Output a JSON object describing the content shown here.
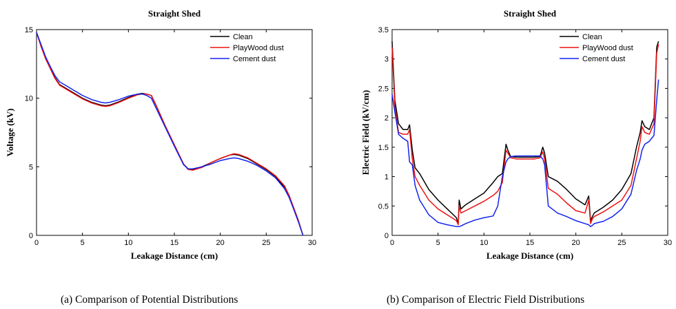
{
  "figure": {
    "caption_a": "(a)   Comparison of Potential Distributions",
    "caption_b": "(b)   Comparison of Electric Field Distributions"
  },
  "chart_data": [
    {
      "type": "line",
      "title": "Straight Shed",
      "xlabel": "Leakage Distance  (cm)",
      "ylabel": "Voltage  (kV)",
      "xlim": [
        0,
        30
      ],
      "ylim": [
        0,
        15
      ],
      "xticks": [
        0,
        5,
        10,
        15,
        20,
        25,
        30
      ],
      "yticks": [
        0,
        5,
        10,
        15
      ],
      "legend_position": "top-right",
      "series": [
        {
          "name": "Clean",
          "color": "#000000",
          "x": [
            0,
            0.5,
            1,
            1.5,
            2,
            2.5,
            3,
            4,
            5,
            6,
            7,
            7.5,
            8,
            9,
            10,
            11,
            11.5,
            12,
            12.5,
            13,
            14,
            15,
            16,
            16.5,
            17,
            18,
            19,
            20,
            21,
            21.5,
            22,
            23,
            24,
            25,
            26,
            27,
            27.5,
            28,
            28.5,
            29
          ],
          "y": [
            14.8,
            13.8,
            12.9,
            12.2,
            11.5,
            11.0,
            10.8,
            10.4,
            10.0,
            9.7,
            9.5,
            9.45,
            9.5,
            9.75,
            10.05,
            10.3,
            10.35,
            10.3,
            10.2,
            9.5,
            8.0,
            6.6,
            5.2,
            4.85,
            4.8,
            5.0,
            5.3,
            5.6,
            5.85,
            5.9,
            5.85,
            5.6,
            5.2,
            4.8,
            4.3,
            3.5,
            2.8,
            1.9,
            1.0,
            0.0
          ]
        },
        {
          "name": "PlayWood dust",
          "color": "#ee1111",
          "x": [
            0,
            0.5,
            1,
            1.5,
            2,
            2.5,
            3,
            4,
            5,
            6,
            7,
            7.5,
            8,
            9,
            10,
            11,
            11.5,
            12,
            12.5,
            13,
            14,
            15,
            16,
            16.5,
            17,
            18,
            19,
            20,
            21,
            21.5,
            22,
            23,
            24,
            25,
            26,
            27,
            27.5,
            28,
            28.5,
            29
          ],
          "y": [
            14.8,
            13.75,
            12.85,
            12.15,
            11.45,
            10.95,
            10.75,
            10.35,
            9.95,
            9.65,
            9.45,
            9.4,
            9.45,
            9.7,
            10.0,
            10.25,
            10.3,
            10.3,
            10.2,
            9.5,
            8.0,
            6.6,
            5.2,
            4.8,
            4.75,
            4.95,
            5.3,
            5.6,
            5.85,
            5.95,
            5.9,
            5.65,
            5.25,
            4.85,
            4.35,
            3.6,
            2.9,
            2.0,
            1.1,
            0.0
          ]
        },
        {
          "name": "Cement dust",
          "color": "#1122ee",
          "x": [
            0,
            0.5,
            1,
            1.5,
            2,
            2.5,
            3,
            4,
            5,
            6,
            7,
            7.5,
            8,
            9,
            10,
            11,
            11.5,
            12,
            12.5,
            13,
            14,
            15,
            16,
            16.5,
            17,
            18,
            19,
            20,
            21,
            21.5,
            22,
            23,
            24,
            25,
            26,
            27,
            27.5,
            28,
            28.5,
            29
          ],
          "y": [
            14.8,
            13.9,
            13.0,
            12.3,
            11.65,
            11.2,
            11.0,
            10.6,
            10.2,
            9.9,
            9.7,
            9.65,
            9.7,
            9.9,
            10.15,
            10.3,
            10.3,
            10.2,
            10.0,
            9.3,
            7.9,
            6.5,
            5.15,
            4.85,
            4.85,
            5.0,
            5.2,
            5.45,
            5.6,
            5.65,
            5.6,
            5.4,
            5.1,
            4.7,
            4.2,
            3.4,
            2.75,
            1.9,
            1.0,
            0.0
          ]
        }
      ]
    },
    {
      "type": "line",
      "title": "Straight Shed",
      "xlabel": "Leakage Distance  (cm)",
      "ylabel": "Electric Field  (kV/cm)",
      "xlim": [
        0,
        30
      ],
      "ylim": [
        0,
        3.5
      ],
      "xticks": [
        0,
        5,
        10,
        15,
        20,
        25,
        30
      ],
      "yticks": [
        0,
        0.5,
        1,
        1.5,
        2,
        2.5,
        3,
        3.5
      ],
      "legend_position": "top-right",
      "series": [
        {
          "name": "Clean",
          "color": "#000000",
          "x": [
            0,
            0.3,
            0.7,
            1.2,
            1.7,
            1.9,
            2.2,
            2.5,
            3,
            4,
            5,
            6,
            7,
            7.2,
            7.3,
            7.5,
            8,
            9,
            10,
            11,
            11.5,
            12,
            12.4,
            12.6,
            12.9,
            13.5,
            14.5,
            15.5,
            16.1,
            16.4,
            16.6,
            17,
            18,
            19,
            20,
            21,
            21.4,
            21.6,
            21.8,
            22,
            23,
            24,
            25,
            26,
            26.6,
            27,
            27.2,
            27.5,
            28,
            28.5,
            28.8,
            29
          ],
          "y": [
            3.3,
            2.3,
            1.9,
            1.8,
            1.8,
            1.88,
            1.45,
            1.15,
            1.05,
            0.78,
            0.6,
            0.45,
            0.3,
            0.2,
            0.6,
            0.45,
            0.52,
            0.62,
            0.72,
            0.9,
            1.0,
            1.05,
            1.55,
            1.45,
            1.34,
            1.33,
            1.33,
            1.33,
            1.34,
            1.5,
            1.4,
            1.0,
            0.92,
            0.78,
            0.62,
            0.52,
            0.67,
            0.25,
            0.32,
            0.38,
            0.48,
            0.6,
            0.78,
            1.05,
            1.5,
            1.75,
            1.95,
            1.85,
            1.8,
            2.0,
            3.2,
            3.3
          ]
        },
        {
          "name": "PlayWood dust",
          "color": "#ee1111",
          "x": [
            0,
            0.3,
            0.7,
            1.2,
            1.7,
            1.9,
            2.2,
            2.5,
            3,
            4,
            5,
            6,
            7,
            7.2,
            7.3,
            7.5,
            8,
            9,
            10,
            11,
            11.5,
            12,
            12.4,
            12.6,
            12.9,
            13.5,
            14.5,
            15.5,
            16.1,
            16.4,
            16.6,
            17,
            18,
            19,
            20,
            21,
            21.4,
            21.6,
            21.8,
            22,
            23,
            24,
            25,
            26,
            26.6,
            27,
            27.2,
            27.5,
            28,
            28.5,
            28.8,
            29
          ],
          "y": [
            3.2,
            2.2,
            1.75,
            1.72,
            1.72,
            1.8,
            1.3,
            1.0,
            0.85,
            0.6,
            0.45,
            0.35,
            0.25,
            0.18,
            0.5,
            0.38,
            0.42,
            0.5,
            0.58,
            0.68,
            0.75,
            0.9,
            1.45,
            1.4,
            1.32,
            1.3,
            1.3,
            1.3,
            1.32,
            1.42,
            1.3,
            0.8,
            0.7,
            0.55,
            0.42,
            0.38,
            0.6,
            0.2,
            0.28,
            0.32,
            0.4,
            0.5,
            0.6,
            0.85,
            1.3,
            1.6,
            1.85,
            1.75,
            1.72,
            1.9,
            3.1,
            3.25
          ]
        },
        {
          "name": "Cement dust",
          "color": "#1122ee",
          "x": [
            0,
            0.3,
            0.7,
            1.2,
            1.7,
            1.9,
            2.2,
            2.5,
            3,
            4,
            5,
            6,
            7,
            7.2,
            7.3,
            7.5,
            8,
            9,
            10,
            11,
            11.5,
            12,
            12.4,
            12.6,
            12.9,
            13.5,
            14.5,
            15.5,
            16.1,
            16.4,
            16.6,
            17,
            18,
            19,
            20,
            21,
            21.4,
            21.6,
            21.8,
            22,
            23,
            24,
            25,
            26,
            26.6,
            27,
            27.2,
            27.5,
            28,
            28.5,
            28.8,
            29
          ],
          "y": [
            2.4,
            2.1,
            1.72,
            1.65,
            1.6,
            1.25,
            1.2,
            0.85,
            0.6,
            0.35,
            0.22,
            0.18,
            0.15,
            0.15,
            0.15,
            0.16,
            0.2,
            0.26,
            0.3,
            0.33,
            0.5,
            1.0,
            1.25,
            1.3,
            1.34,
            1.35,
            1.35,
            1.35,
            1.35,
            1.3,
            1.2,
            0.5,
            0.38,
            0.32,
            0.25,
            0.2,
            0.18,
            0.15,
            0.17,
            0.2,
            0.24,
            0.32,
            0.45,
            0.7,
            1.1,
            1.3,
            1.45,
            1.55,
            1.6,
            1.7,
            2.3,
            2.65
          ]
        }
      ]
    }
  ]
}
